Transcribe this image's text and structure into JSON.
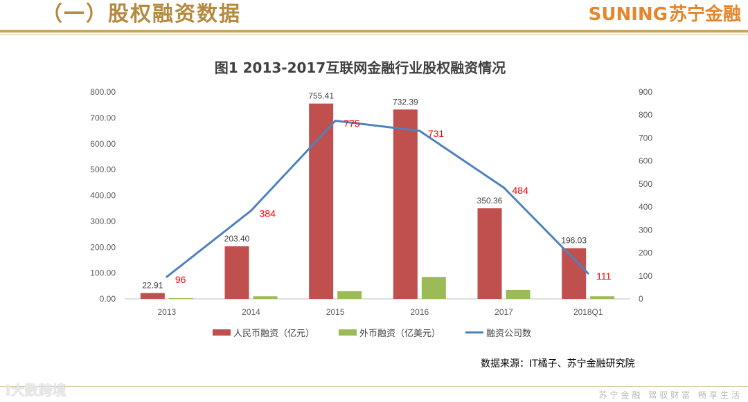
{
  "header": {
    "section_title": "（一）股权融资数据",
    "brand_en": "SUNING",
    "brand_cn": "苏宁金融"
  },
  "chart_data": {
    "type": "bar+line",
    "title": "图1 2013-2017互联网金融行业股权融资情况",
    "categories": [
      "2013",
      "2014",
      "2015",
      "2016",
      "2017",
      "2018Q1"
    ],
    "series": [
      {
        "name": "人民币融资（亿元）",
        "type": "bar",
        "axis": "left",
        "color": "#c0504d",
        "values": [
          22.91,
          203.4,
          755.41,
          732.39,
          350.36,
          196.03
        ],
        "labels": [
          "22.91",
          "203.40",
          "755.41",
          "732.39",
          "350.36",
          "196.03"
        ]
      },
      {
        "name": "外币融资（亿美元）",
        "type": "bar",
        "axis": "left",
        "color": "#9bbb59",
        "values": [
          3,
          10,
          30,
          85,
          35,
          10
        ]
      },
      {
        "name": "融资公司数",
        "type": "line",
        "axis": "right",
        "color": "#4f81bd",
        "values": [
          96,
          384,
          775,
          731,
          484,
          111
        ],
        "labels": [
          "96",
          "384",
          "775",
          "731",
          "484",
          "111"
        ]
      }
    ],
    "y_left": {
      "min": 0,
      "max": 800,
      "ticks": [
        "0.00",
        "100.00",
        "200.00",
        "300.00",
        "400.00",
        "500.00",
        "600.00",
        "700.00",
        "800.00"
      ]
    },
    "y_right": {
      "min": 0,
      "max": 900,
      "ticks": [
        "0",
        "100",
        "200",
        "300",
        "400",
        "500",
        "600",
        "700",
        "800",
        "900"
      ]
    },
    "grid": false,
    "legend_position": "bottom"
  },
  "source": "数据来源：IT橘子、苏宁金融研究院",
  "footer": {
    "watermark": "大数跨境",
    "slogan": "苏宁金融 驾驭财富 畅享生活"
  }
}
